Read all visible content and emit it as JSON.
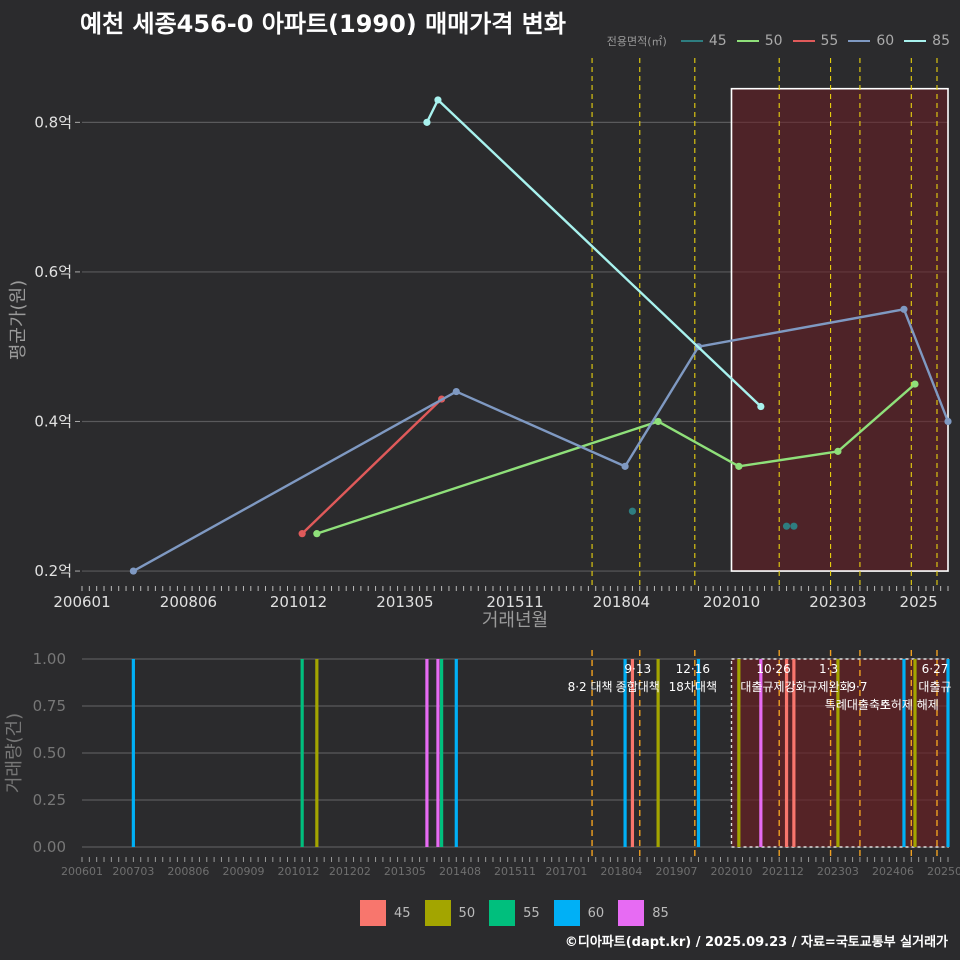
{
  "title": "예천 세종456-0 아파트(1990) 매매가격 변화",
  "footer": "©디아파트(dapt.kr) / 2025.09.23 / 자료=국토교통부 실거래가",
  "legend_title": "전용면적(㎡)",
  "top_legend": [
    {
      "label": "45",
      "color": "#2e7d80"
    },
    {
      "label": "50",
      "color": "#8fe07a"
    },
    {
      "label": "55",
      "color": "#e05a5a"
    },
    {
      "label": "60",
      "color": "#7f99c2"
    },
    {
      "label": "85",
      "color": "#a8f2ee"
    }
  ],
  "bottom_legend": [
    {
      "label": "45",
      "color": "#f8766d"
    },
    {
      "label": "50",
      "color": "#a3a500"
    },
    {
      "label": "55",
      "color": "#00bf7d"
    },
    {
      "label": "60",
      "color": "#00b0f6"
    },
    {
      "label": "85",
      "color": "#e76bf3"
    }
  ],
  "chart_data": [
    {
      "type": "line",
      "ylabel": "평균가(원)",
      "xlabel": "거래년월",
      "ylim": [
        0.18,
        0.87
      ],
      "xlim": [
        "2006-01",
        "2025-09"
      ],
      "y_ticks": [
        {
          "value": 0.2,
          "label": "0.2억"
        },
        {
          "value": 0.4,
          "label": "0.4억"
        },
        {
          "value": 0.6,
          "label": "0.6억"
        },
        {
          "value": 0.8,
          "label": "0.8억"
        }
      ],
      "x_ticks": [
        "200601",
        "200806",
        "201012",
        "201305",
        "201511",
        "201804",
        "202010",
        "202303",
        "2025"
      ],
      "grid": true,
      "policy_dates": [
        "2017-08",
        "2018-09",
        "2019-12",
        "2021-11",
        "2023-01",
        "2023-09",
        "2024-11",
        "2025-06"
      ],
      "highlight_range": [
        "2020-10",
        "2025-09"
      ],
      "series": [
        {
          "name": "45",
          "color": "#2e7d80",
          "points": [
            [
              "2018-07",
              0.28
            ],
            [
              "2022-01",
              0.26
            ],
            [
              "2022-03",
              0.26
            ]
          ]
        },
        {
          "name": "50",
          "color": "#8fe07a",
          "points": [
            [
              "2011-05",
              0.25
            ],
            [
              "2019-02",
              0.4
            ],
            [
              "2020-12",
              0.34
            ],
            [
              "2023-03",
              0.36
            ],
            [
              "2024-12",
              0.45
            ]
          ]
        },
        {
          "name": "55",
          "color": "#e05a5a",
          "points": [
            [
              "2011-01",
              0.25
            ],
            [
              "2014-03",
              0.43
            ]
          ]
        },
        {
          "name": "60",
          "color": "#7f99c2",
          "points": [
            [
              "2007-03",
              0.2
            ],
            [
              "2014-07",
              0.44
            ],
            [
              "2018-05",
              0.34
            ],
            [
              "2020-01",
              0.5
            ],
            [
              "2024-09",
              0.55
            ],
            [
              "2025-09",
              0.4
            ]
          ]
        },
        {
          "name": "85",
          "color": "#a8f2ee",
          "points": [
            [
              "2013-11",
              0.8
            ],
            [
              "2014-02",
              0.83
            ],
            [
              "2021-06",
              0.42
            ]
          ]
        }
      ]
    },
    {
      "type": "bar",
      "ylabel": "거래량(건)",
      "ylim": [
        0,
        1.0
      ],
      "y_ticks": [
        "0.00",
        "0.25",
        "0.50",
        "0.75",
        "1.00"
      ],
      "x_ticks": [
        "200601",
        "200703",
        "200806",
        "200909",
        "201012",
        "201202",
        "201305",
        "201408",
        "201511",
        "201701",
        "201804",
        "201907",
        "202010",
        "202112",
        "202303",
        "202406",
        "202509"
      ],
      "policy_labels": [
        {
          "date": "2017-08",
          "label": "8·2 대책",
          "row": 2
        },
        {
          "date": "2018-09",
          "label": "9·13",
          "row": 1
        },
        {
          "date": "2018-09",
          "label": "종합대책",
          "row": 2
        },
        {
          "date": "2019-12",
          "label": "12·16",
          "row": 1
        },
        {
          "date": "2019-12",
          "label": "18차대책",
          "row": 2
        },
        {
          "date": "2021-10",
          "label": "10·26",
          "row": 1
        },
        {
          "date": "2021-10",
          "label": "대출규제강화",
          "row": 2
        },
        {
          "date": "2023-01",
          "label": "1·3",
          "row": 1
        },
        {
          "date": "2023-01",
          "label": "규제완화",
          "row": 2
        },
        {
          "date": "2023-09",
          "label": "9·7",
          "row": 2
        },
        {
          "date": "2023-09",
          "label": "특례대출축소",
          "row": 3
        },
        {
          "date": "2024-11",
          "label": "토허제 해제",
          "row": 3
        },
        {
          "date": "2025-06",
          "label": "6·27",
          "row": 1
        },
        {
          "date": "2025-06",
          "label": "대출규",
          "row": 2
        }
      ],
      "bars": [
        {
          "date": "2007-03",
          "series": "60",
          "value": 1
        },
        {
          "date": "2011-01",
          "series": "55",
          "value": 1
        },
        {
          "date": "2011-05",
          "series": "50",
          "value": 1
        },
        {
          "date": "2013-11",
          "series": "85",
          "value": 1
        },
        {
          "date": "2014-02",
          "series": "85",
          "value": 1
        },
        {
          "date": "2014-03",
          "series": "55",
          "value": 1
        },
        {
          "date": "2014-07",
          "series": "60",
          "value": 1
        },
        {
          "date": "2018-05",
          "series": "60",
          "value": 1
        },
        {
          "date": "2018-07",
          "series": "45",
          "value": 1
        },
        {
          "date": "2019-02",
          "series": "50",
          "value": 1
        },
        {
          "date": "2020-01",
          "series": "60",
          "value": 1
        },
        {
          "date": "2020-12",
          "series": "50",
          "value": 1
        },
        {
          "date": "2021-06",
          "series": "85",
          "value": 1
        },
        {
          "date": "2022-01",
          "series": "45",
          "value": 1
        },
        {
          "date": "2022-03",
          "series": "45",
          "value": 1
        },
        {
          "date": "2023-03",
          "series": "50",
          "value": 1
        },
        {
          "date": "2024-09",
          "series": "60",
          "value": 1
        },
        {
          "date": "2024-12",
          "series": "50",
          "value": 1
        },
        {
          "date": "2025-09",
          "series": "60",
          "value": 1
        }
      ]
    }
  ]
}
